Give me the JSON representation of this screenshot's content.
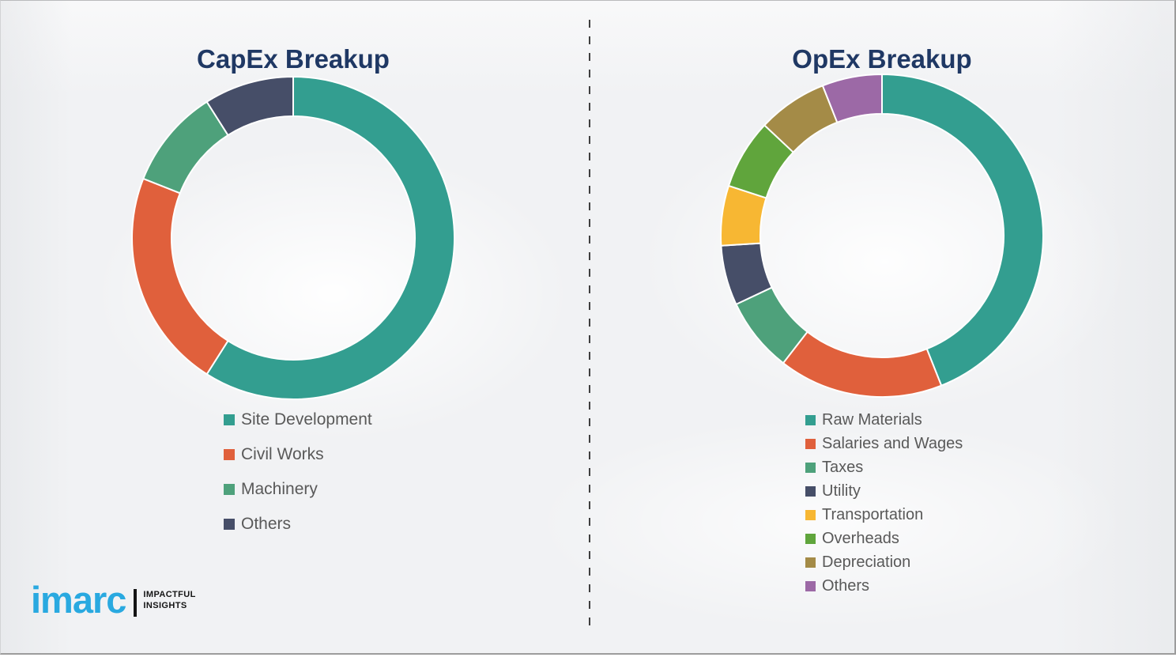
{
  "theme": {
    "canvas_background": "#f1f2f4",
    "frame_border_color": "#9c9c9c",
    "title_color": "#1F3864",
    "legend_text_color": "#595959",
    "segment_gap_color": "#ffffff",
    "divider_color": "#3f3f3f"
  },
  "chart_data": [
    {
      "type": "donut",
      "title": "CapEx Breakup",
      "labels": [
        "Site Development",
        "Civil Works",
        "Machinery",
        "Others"
      ],
      "values": [
        59,
        22,
        10,
        9
      ],
      "colors": [
        "#339E90",
        "#E0603C",
        "#4EA17B",
        "#464E68"
      ],
      "start_angle_deg": 0,
      "direction": "clockwise",
      "legend_position": "below-left"
    },
    {
      "type": "donut",
      "title": "OpEx Breakup",
      "labels": [
        "Raw Materials",
        "Salaries and Wages",
        "Taxes",
        "Utility",
        "Transportation",
        "Overheads",
        "Depreciation",
        "Others"
      ],
      "values": [
        44,
        16.5,
        7.5,
        6,
        6,
        7,
        7,
        6
      ],
      "colors": [
        "#339E90",
        "#E0603C",
        "#4EA17B",
        "#464E68",
        "#F7B733",
        "#60A53C",
        "#A48B47",
        "#9C69A6"
      ],
      "start_angle_deg": 0,
      "direction": "clockwise",
      "legend_position": "below-left"
    }
  ],
  "logo": {
    "brand": "imarc",
    "tagline_line1": "IMPACTFUL",
    "tagline_line2": "INSIGHTS",
    "brand_color": "#29A9E0",
    "tagline_color": "#141414"
  }
}
